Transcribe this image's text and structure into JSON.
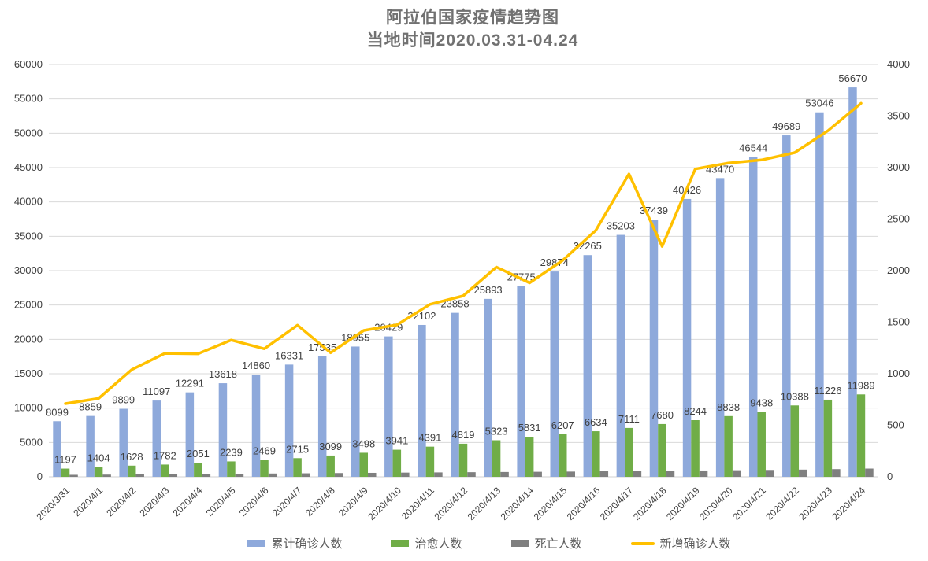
{
  "title": {
    "line1": "阿拉伯国家疫情趋势图",
    "line2": "当地时间2020.03.31-04.24"
  },
  "chart_data": {
    "type": "bar",
    "subtype": "grouped-bars-with-line-overlay",
    "title": "阿拉伯国家疫情趋势图",
    "subtitle": "当地时间2020.03.31-04.24",
    "categories": [
      "2020/3/31",
      "2020/4/1",
      "2020/4/2",
      "2020/4/3",
      "2020/4/4",
      "2020/4/5",
      "2020/4/6",
      "2020/4/7",
      "2020/4/8",
      "2020/4/9",
      "2020/4/10",
      "2020/4/11",
      "2020/4/12",
      "2020/4/13",
      "2020/4/14",
      "2020/4/15",
      "2020/4/16",
      "2020/4/17",
      "2020/4/18",
      "2020/4/19",
      "2020/4/20",
      "2020/4/21",
      "2020/4/22",
      "2020/4/23",
      "2020/4/24"
    ],
    "series": [
      {
        "key": "cumulative-confirmed",
        "name": "累计确诊人数",
        "type": "bar",
        "axis": "left",
        "color": "#8EA9DB",
        "show_labels": true,
        "values": [
          8099,
          8859,
          9899,
          11097,
          12291,
          13618,
          14860,
          16331,
          17535,
          18955,
          20429,
          22102,
          23858,
          25893,
          27775,
          29874,
          32265,
          35203,
          37439,
          40426,
          43470,
          46544,
          49689,
          53046,
          56670
        ]
      },
      {
        "key": "recovered",
        "name": "治愈人数",
        "type": "bar",
        "axis": "left",
        "color": "#70AD47",
        "show_labels": true,
        "values": [
          1197,
          1404,
          1628,
          1782,
          2051,
          2239,
          2469,
          2715,
          3099,
          3498,
          3941,
          4391,
          4819,
          5323,
          5831,
          6207,
          6634,
          7111,
          7680,
          8244,
          8838,
          9438,
          10388,
          11226,
          11989
        ]
      },
      {
        "key": "deaths",
        "name": "死亡人数",
        "type": "bar",
        "axis": "left",
        "color": "#7F7F7F",
        "show_labels": false,
        "values": [
          290,
          320,
          350,
          390,
          420,
          450,
          480,
          510,
          545,
          575,
          610,
          640,
          670,
          700,
          730,
          760,
          800,
          840,
          880,
          920,
          960,
          1000,
          1050,
          1120,
          1200
        ]
      },
      {
        "key": "new-confirmed",
        "name": "新增确诊人数",
        "type": "line",
        "axis": "right",
        "color": "#FFC000",
        "show_labels": false,
        "values": [
          710,
          760,
          1040,
          1198,
          1194,
          1327,
          1242,
          1471,
          1204,
          1420,
          1474,
          1673,
          1756,
          2035,
          1882,
          2099,
          2391,
          2938,
          2236,
          2987,
          3044,
          3074,
          3145,
          3357,
          3624
        ]
      }
    ],
    "axes": {
      "left": {
        "min": 0,
        "max": 60000,
        "step": 5000
      },
      "right": {
        "min": 0,
        "max": 4000,
        "step": 500
      }
    },
    "grid": "horizontal-only",
    "legend_position": "bottom"
  },
  "colors": {
    "bar_confirmed": "#8EA9DB",
    "bar_recovered": "#70AD47",
    "bar_deaths": "#7F7F7F",
    "line_new": "#FFC000",
    "gridline": "#D9D9D9",
    "axis_line": "#D0D0D0",
    "tick_text": "#404040",
    "data_label_text": "#404040",
    "title_text": "#717171",
    "legend_text": "#595959",
    "background": "#FFFFFF"
  }
}
